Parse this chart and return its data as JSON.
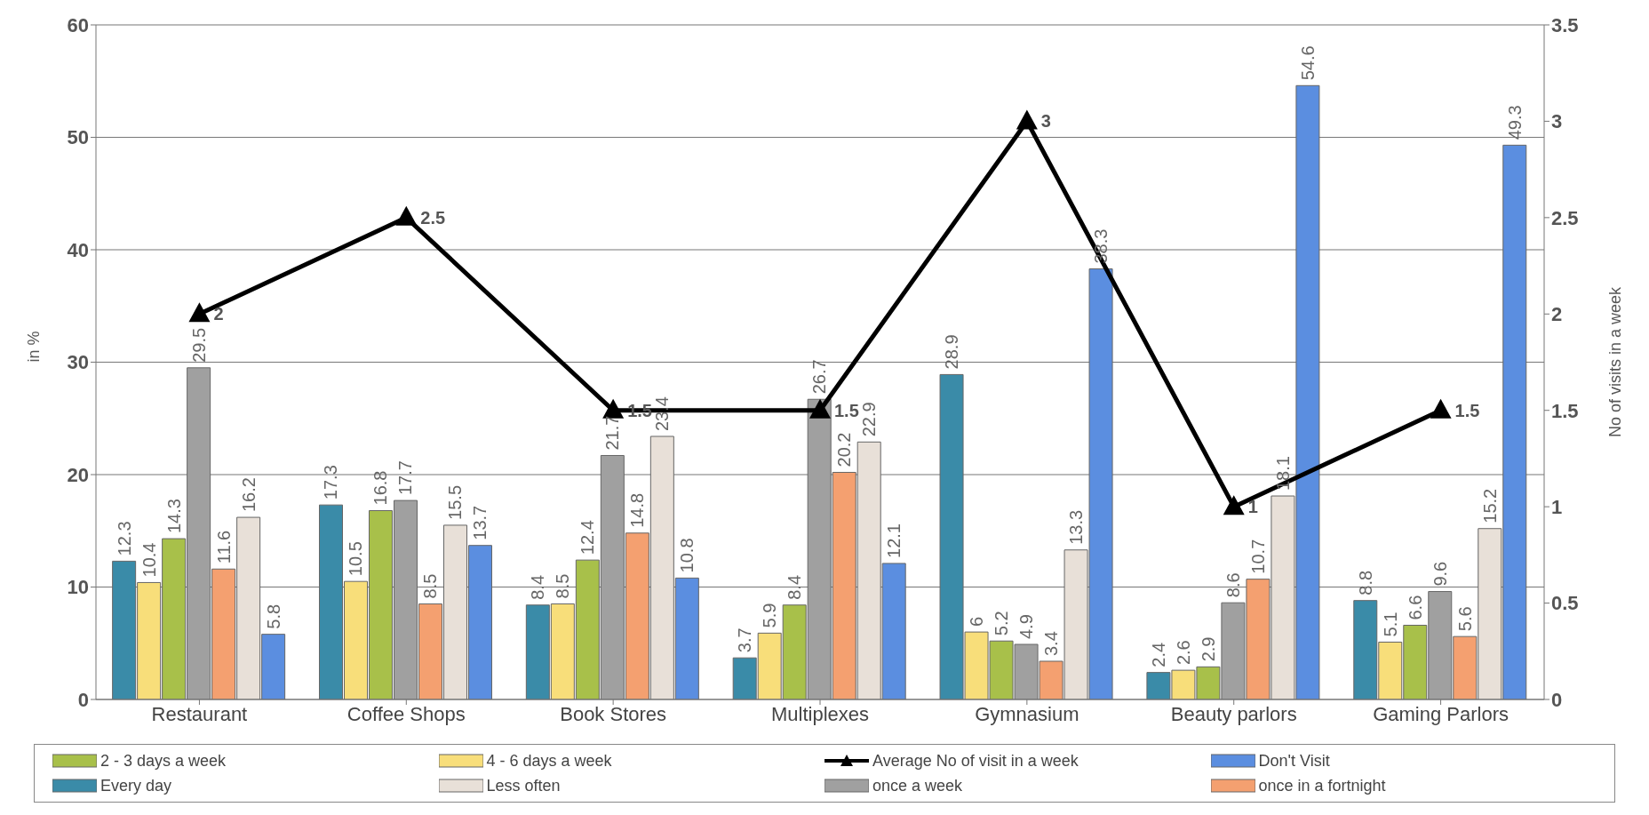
{
  "chart_data": {
    "type": "bar",
    "ylabel": "in %",
    "y2label": "No of visits in a week",
    "categories": [
      "Restaurant",
      "Coffee Shops",
      "Book Stores",
      "Multiplexes",
      "Gymnasium",
      "Beauty parlors",
      "Gaming Parlors"
    ],
    "series": [
      {
        "name": "Every day",
        "color": "#3a8ba8",
        "values": [
          12.3,
          17.3,
          8.4,
          3.7,
          28.9,
          2.4,
          8.8
        ]
      },
      {
        "name": "4 - 6 days a week",
        "color": "#f8de7a",
        "values": [
          10.4,
          10.5,
          8.5,
          5.9,
          6,
          2.6,
          5.1
        ]
      },
      {
        "name": "2 - 3 days a week",
        "color": "#a8c04a",
        "values": [
          14.3,
          16.8,
          12.4,
          8.4,
          5.2,
          2.9,
          6.6
        ]
      },
      {
        "name": "once a week",
        "color": "#a0a0a0",
        "values": [
          29.5,
          17.7,
          21.7,
          26.7,
          4.9,
          8.6,
          9.6
        ]
      },
      {
        "name": "once in a fortnight",
        "color": "#f4a070",
        "values": [
          11.6,
          8.5,
          14.8,
          20.2,
          3.4,
          10.7,
          5.6
        ]
      },
      {
        "name": "Less often",
        "color": "#e8e0d8",
        "values": [
          16.2,
          15.5,
          23.4,
          22.9,
          13.3,
          18.1,
          15.2
        ]
      },
      {
        "name": "Don't Visit",
        "color": "#5b8ee0",
        "values": [
          5.8,
          13.7,
          10.8,
          12.1,
          38.3,
          54.6,
          49.3
        ]
      },
      {
        "name": "Average No of visit in a week",
        "type": "line",
        "axis": "y2",
        "color": "#000000",
        "marker": "triangle",
        "values": [
          2,
          2.5,
          1.5,
          1.5,
          3,
          1,
          1.5
        ]
      }
    ],
    "ylim": [
      0,
      60
    ],
    "yticks": [
      0,
      10,
      20,
      30,
      40,
      50,
      60
    ],
    "y2lim": [
      0,
      3.5
    ],
    "y2ticks": [
      0,
      0.5,
      1,
      1.5,
      2,
      2.5,
      3,
      3.5
    ],
    "grid": "y",
    "legend": "bottom",
    "data_labels": true
  }
}
